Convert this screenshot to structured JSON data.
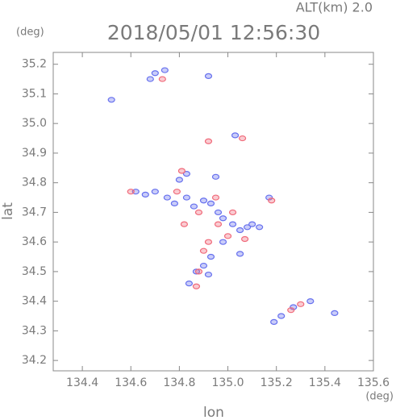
{
  "chart_data": {
    "type": "scatter",
    "title": "2018/05/01 12:56:30",
    "subtitle": "ALT(km) 2.0",
    "y_unit": "(deg)",
    "x_unit": "(deg)",
    "x_label": "lon",
    "y_label": "lat",
    "xlim": [
      134.28,
      135.6
    ],
    "ylim": [
      34.165,
      35.24
    ],
    "xticks": [
      134.4,
      134.6,
      134.8,
      {
        "value": 135,
        "label": "135.0"
      },
      135.2,
      135.4,
      135.6
    ],
    "yticks": [
      34.2,
      34.3,
      34.4,
      34.5,
      34.6,
      34.7,
      34.8,
      34.9,
      {
        "value": 35,
        "label": "35.0"
      },
      35.1,
      35.2
    ],
    "series": [
      {
        "color": "#6670ee",
        "x": [
          134.7,
          134.68,
          134.74,
          134.92,
          134.52,
          135.03,
          134.83,
          134.8,
          134.62,
          134.66,
          134.7,
          134.75,
          134.78,
          134.83,
          134.86,
          134.9,
          134.93,
          134.96,
          134.98,
          135.02,
          135.05,
          135.08,
          135.1,
          135.13,
          134.93,
          134.9,
          134.87,
          134.84,
          134.92,
          135.27,
          135.34,
          135.22,
          135.19,
          135.44,
          135.17,
          135.05,
          134.98,
          134.95
        ],
        "values": [
          35.17,
          35.15,
          35.18,
          35.16,
          35.08,
          34.96,
          34.83,
          34.81,
          34.77,
          34.76,
          34.77,
          34.75,
          34.73,
          34.75,
          34.72,
          34.74,
          34.73,
          34.7,
          34.68,
          34.66,
          34.64,
          34.65,
          34.66,
          34.65,
          34.55,
          34.52,
          34.5,
          34.46,
          34.49,
          34.38,
          34.4,
          34.35,
          34.33,
          34.36,
          34.75,
          34.56,
          34.6,
          34.82
        ]
      },
      {
        "color": "#f06a7a",
        "x": [
          134.73,
          135.06,
          134.92,
          134.81,
          134.6,
          134.79,
          134.88,
          134.95,
          134.96,
          135.0,
          135.07,
          134.82,
          134.9,
          134.88,
          134.87,
          135.26,
          135.3,
          135.18,
          135.02,
          134.92
        ],
        "values": [
          35.15,
          34.95,
          34.94,
          34.84,
          34.77,
          34.77,
          34.7,
          34.75,
          34.66,
          34.62,
          34.61,
          34.66,
          34.57,
          34.5,
          34.45,
          34.37,
          34.39,
          34.74,
          34.7,
          34.6
        ]
      }
    ]
  }
}
